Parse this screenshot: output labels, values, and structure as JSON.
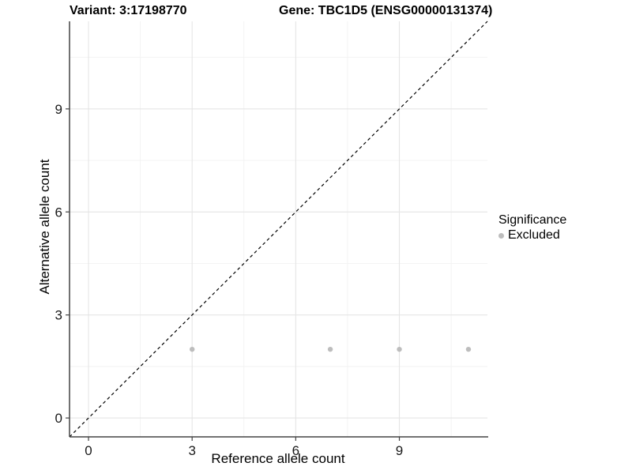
{
  "chart_data": {
    "type": "scatter",
    "title_left": "Variant: 3:17198770",
    "title_right": "Gene: TBC1D5 (ENSG00000131374)",
    "xlabel": "Reference allele count",
    "ylabel": "Alternative allele count",
    "xlim": [
      -0.55,
      11.55
    ],
    "ylim": [
      -0.55,
      11.55
    ],
    "x_ticks": [
      0,
      3,
      6,
      9
    ],
    "y_ticks": [
      0,
      3,
      6,
      9
    ],
    "x_minor_breaks": [
      1.5,
      4.5,
      7.5,
      10.5
    ],
    "y_minor_breaks": [
      1.5,
      4.5,
      7.5,
      10.5
    ],
    "grid": true,
    "series": [
      {
        "name": "Excluded",
        "color": "#bdbdbd",
        "points": [
          [
            3,
            2
          ],
          [
            7,
            2
          ],
          [
            9,
            2
          ],
          [
            11,
            2
          ]
        ]
      }
    ],
    "identity_line": {
      "slope": 1,
      "intercept": 0,
      "style": "dashed",
      "color": "#000000"
    },
    "legend": {
      "position": "right",
      "title": "Significance",
      "items": [
        {
          "label": "Excluded",
          "color": "#bdbdbd"
        }
      ]
    },
    "colors": {
      "background": "#ffffff",
      "grid_major": "#e5e5e5",
      "grid_minor": "#f2f2f2",
      "axis_line": "#434343",
      "tick_text": "#1a1a1a"
    }
  }
}
